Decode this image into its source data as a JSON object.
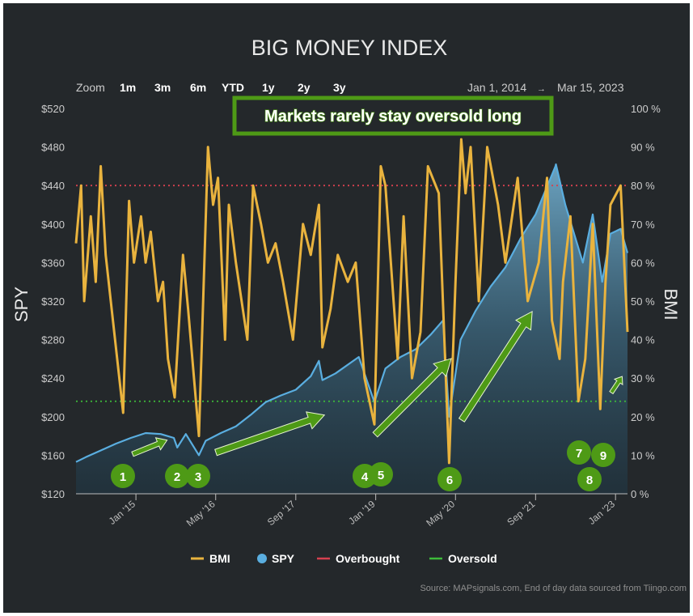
{
  "chart_data": {
    "type": "line",
    "title": "BIG MONEY INDEX",
    "ylabel_left": "SPY",
    "ylabel_right": "BMI",
    "x_range": [
      "2014-01-01",
      "2023-03-15"
    ],
    "x_ticks": [
      "Jan '15",
      "May '16",
      "Sep '17",
      "Jan '19",
      "May '20",
      "Sep '21",
      "Jan '23"
    ],
    "y_left_ticks": [
      "$520",
      "$480",
      "$440",
      "$400",
      "$360",
      "$320",
      "$280",
      "$240",
      "$200",
      "$160",
      "$120"
    ],
    "y_left_range": [
      120,
      520
    ],
    "y_right_ticks": [
      "100 %",
      "90 %",
      "80 %",
      "70 %",
      "60 %",
      "50 %",
      "40 %",
      "30 %",
      "20 %",
      "10 %",
      "0 %"
    ],
    "y_right_range": [
      0,
      100
    ],
    "reference_lines": {
      "overbought": 80,
      "oversold": 24
    },
    "series": [
      {
        "name": "SPY",
        "color": "#5aaee0",
        "points": [
          [
            "2014-01-01",
            153
          ],
          [
            "2014-03-01",
            158
          ],
          [
            "2014-06-01",
            165
          ],
          [
            "2014-09-01",
            172
          ],
          [
            "2014-12-01",
            178
          ],
          [
            "2015-03-01",
            183
          ],
          [
            "2015-06-01",
            182
          ],
          [
            "2015-08-20",
            178
          ],
          [
            "2015-09-10",
            168
          ],
          [
            "2015-11-01",
            182
          ],
          [
            "2016-01-20",
            160
          ],
          [
            "2016-03-01",
            175
          ],
          [
            "2016-06-01",
            183
          ],
          [
            "2016-09-01",
            190
          ],
          [
            "2016-12-01",
            202
          ],
          [
            "2017-03-01",
            215
          ],
          [
            "2017-06-01",
            222
          ],
          [
            "2017-09-01",
            228
          ],
          [
            "2017-12-01",
            242
          ],
          [
            "2018-01-20",
            258
          ],
          [
            "2018-02-10",
            238
          ],
          [
            "2018-05-01",
            245
          ],
          [
            "2018-09-20",
            262
          ],
          [
            "2018-12-24",
            215
          ],
          [
            "2019-03-01",
            250
          ],
          [
            "2019-06-01",
            262
          ],
          [
            "2019-09-01",
            270
          ],
          [
            "2019-12-01",
            285
          ],
          [
            "2020-02-15",
            300
          ],
          [
            "2020-03-23",
            200
          ],
          [
            "2020-06-01",
            280
          ],
          [
            "2020-09-01",
            310
          ],
          [
            "2020-12-01",
            335
          ],
          [
            "2021-03-01",
            355
          ],
          [
            "2021-06-01",
            385
          ],
          [
            "2021-09-01",
            410
          ],
          [
            "2021-12-31",
            460
          ],
          [
            "2022-01-03",
            462
          ],
          [
            "2022-03-01",
            420
          ],
          [
            "2022-06-16",
            360
          ],
          [
            "2022-08-15",
            410
          ],
          [
            "2022-10-12",
            340
          ],
          [
            "2022-12-01",
            390
          ],
          [
            "2023-02-01",
            395
          ],
          [
            "2023-03-15",
            370
          ]
        ]
      },
      {
        "name": "BMI",
        "color": "#e9b33e",
        "points": [
          [
            "2014-01-01",
            65
          ],
          [
            "2014-02-01",
            80
          ],
          [
            "2014-02-20",
            50
          ],
          [
            "2014-04-01",
            72
          ],
          [
            "2014-05-01",
            55
          ],
          [
            "2014-06-01",
            85
          ],
          [
            "2014-07-01",
            62
          ],
          [
            "2014-08-01",
            50
          ],
          [
            "2014-10-15",
            21
          ],
          [
            "2014-11-20",
            76
          ],
          [
            "2014-12-20",
            60
          ],
          [
            "2015-02-01",
            72
          ],
          [
            "2015-03-01",
            60
          ],
          [
            "2015-04-01",
            68
          ],
          [
            "2015-05-15",
            50
          ],
          [
            "2015-06-15",
            55
          ],
          [
            "2015-07-15",
            35
          ],
          [
            "2015-08-25",
            25
          ],
          [
            "2015-10-15",
            62
          ],
          [
            "2015-11-15",
            48
          ],
          [
            "2016-01-20",
            15
          ],
          [
            "2016-03-15",
            90
          ],
          [
            "2016-04-15",
            75
          ],
          [
            "2016-05-15",
            82
          ],
          [
            "2016-06-27",
            40
          ],
          [
            "2016-07-20",
            75
          ],
          [
            "2016-09-01",
            60
          ],
          [
            "2016-11-10",
            40
          ],
          [
            "2016-12-15",
            80
          ],
          [
            "2017-02-01",
            70
          ],
          [
            "2017-03-15",
            60
          ],
          [
            "2017-05-01",
            65
          ],
          [
            "2017-06-15",
            55
          ],
          [
            "2017-08-15",
            40
          ],
          [
            "2017-10-15",
            70
          ],
          [
            "2017-12-01",
            62
          ],
          [
            "2018-01-20",
            75
          ],
          [
            "2018-02-10",
            38
          ],
          [
            "2018-04-01",
            48
          ],
          [
            "2018-05-15",
            62
          ],
          [
            "2018-07-15",
            55
          ],
          [
            "2018-09-01",
            60
          ],
          [
            "2018-10-25",
            30
          ],
          [
            "2018-12-24",
            18
          ],
          [
            "2019-02-01",
            85
          ],
          [
            "2019-03-01",
            80
          ],
          [
            "2019-05-15",
            35
          ],
          [
            "2019-06-20",
            72
          ],
          [
            "2019-08-10",
            30
          ],
          [
            "2019-10-01",
            42
          ],
          [
            "2019-11-15",
            85
          ],
          [
            "2020-01-20",
            78
          ],
          [
            "2020-02-25",
            38
          ],
          [
            "2020-03-23",
            8
          ],
          [
            "2020-05-01",
            55
          ],
          [
            "2020-06-05",
            92
          ],
          [
            "2020-07-01",
            78
          ],
          [
            "2020-08-01",
            90
          ],
          [
            "2020-09-20",
            50
          ],
          [
            "2020-11-10",
            90
          ],
          [
            "2021-01-15",
            75
          ],
          [
            "2021-03-01",
            60
          ],
          [
            "2021-05-15",
            82
          ],
          [
            "2021-07-15",
            50
          ],
          [
            "2021-09-20",
            60
          ],
          [
            "2021-11-10",
            82
          ],
          [
            "2021-12-10",
            45
          ],
          [
            "2022-01-25",
            35
          ],
          [
            "2022-02-15",
            55
          ],
          [
            "2022-04-01",
            72
          ],
          [
            "2022-05-20",
            24
          ],
          [
            "2022-07-01",
            35
          ],
          [
            "2022-08-15",
            70
          ],
          [
            "2022-09-30",
            22
          ],
          [
            "2022-11-01",
            55
          ],
          [
            "2022-12-01",
            75
          ],
          [
            "2023-02-01",
            80
          ],
          [
            "2023-03-15",
            42
          ]
        ]
      }
    ],
    "callouts": [
      "1",
      "2",
      "3",
      "4",
      "5",
      "6",
      "7",
      "8",
      "9"
    ],
    "annotation": "Markets rarely stay oversold long"
  },
  "zoom": {
    "label": "Zoom",
    "options": [
      "1m",
      "3m",
      "6m",
      "YTD",
      "1y",
      "2y",
      "3y"
    ]
  },
  "range": {
    "from": "Jan 1, 2014",
    "arrow": "→",
    "to": "Mar 15, 2023"
  },
  "legend": [
    "BMI",
    "SPY",
    "Overbought",
    "Oversold"
  ],
  "source": "Source: MAPsignals.com, End of day data sourced from Tiingo.com",
  "colors": {
    "background": "#24282b",
    "spy": "#5aaee0",
    "bmi": "#e9b33e",
    "overbought": "#d6404f",
    "oversold": "#3dba3a",
    "callout": "#4e9a16",
    "annotation_border": "#4e9a16"
  }
}
